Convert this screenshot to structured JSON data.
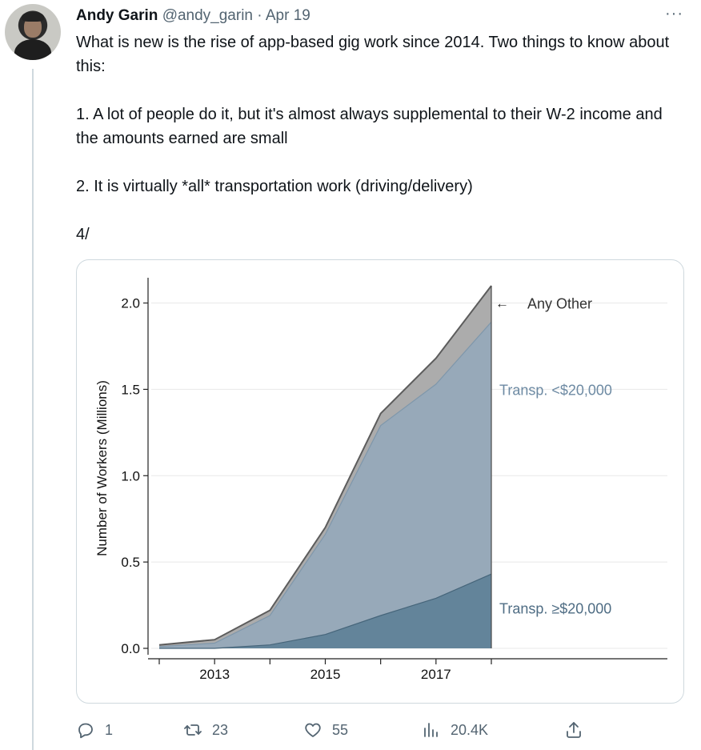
{
  "tweet": {
    "author_name": "Andy Garin",
    "author_handle": "@andy_garin",
    "separator": "·",
    "date": "Apr 19",
    "more_label": "···",
    "paragraphs": [
      "What is new is the rise of app-based gig work since 2014. Two things to know about this:",
      "1. A lot of people do it, but it's almost always supplemental to their W-2 income and the amounts earned are small",
      "2. It is virtually *all* transportation work (driving/delivery)",
      "4/"
    ]
  },
  "actions": {
    "reply": {
      "icon": "reply-icon",
      "count": "1"
    },
    "retweet": {
      "icon": "retweet-icon",
      "count": "23"
    },
    "like": {
      "icon": "heart-icon",
      "count": "55"
    },
    "views": {
      "icon": "views-icon",
      "count": "20.4K"
    },
    "share": {
      "icon": "share-icon"
    }
  },
  "colors": {
    "any_other": "#acacac",
    "transp_low": "#97a9b9",
    "transp_high": "#63849a",
    "label_low": "#6d8aa3",
    "label_high": "#4f6d84"
  },
  "chart_data": {
    "type": "area",
    "stacked": true,
    "ylabel": "Number of Workers  (Millions)",
    "xlabel": "",
    "x": [
      2012,
      2013,
      2014,
      2015,
      2016,
      2017,
      2018
    ],
    "xticks": [
      2013,
      2015,
      2017
    ],
    "ylim": [
      0,
      2.1
    ],
    "yticks": [
      "0.0",
      "0.5",
      "1.0",
      "1.5",
      "2.0"
    ],
    "grid": "horizontal",
    "series": [
      {
        "name": "Transp. ≥$20,000",
        "values": [
          0.0,
          0.0,
          0.02,
          0.08,
          0.19,
          0.29,
          0.43
        ]
      },
      {
        "name": "Transp. <$20,000",
        "values": [
          0.01,
          0.03,
          0.17,
          0.58,
          1.1,
          1.24,
          1.46
        ]
      },
      {
        "name": "Any Other",
        "values": [
          0.01,
          0.02,
          0.03,
          0.04,
          0.07,
          0.15,
          0.21
        ]
      }
    ],
    "annotation_arrow": "←"
  }
}
